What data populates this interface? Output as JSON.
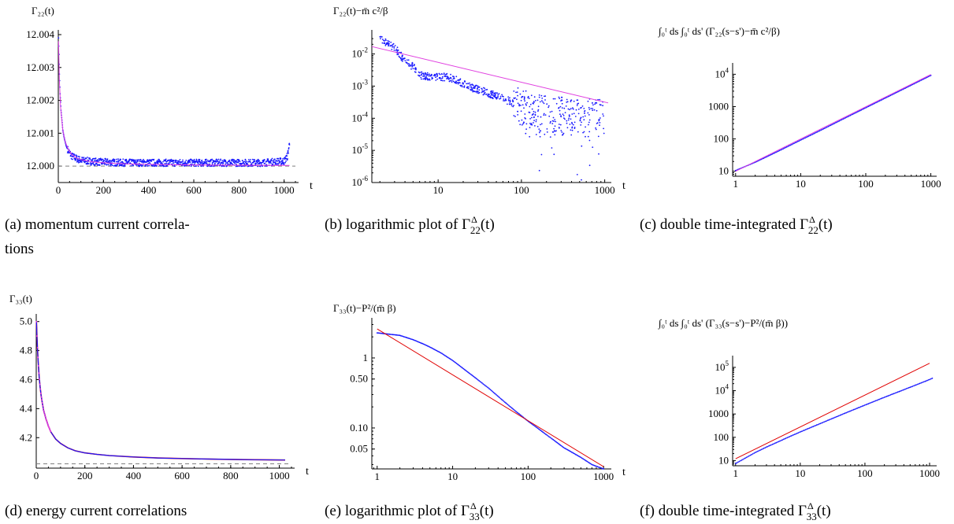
{
  "colors": {
    "scatter": "#1a1aff",
    "fit_magenta": "#e040e0",
    "fit_red": "#e00000",
    "dashed": "#7f7f7f"
  },
  "chart_data": [
    {
      "id": "a",
      "type": "scatter",
      "scale": "linear",
      "ylabel": "Γ₂₂(t)",
      "xlabel": "t",
      "xlim": [
        0,
        1050
      ],
      "ylim": [
        11.9995,
        12.004
      ],
      "xticks": [
        {
          "v": 0,
          "l": "0"
        },
        {
          "v": 200,
          "l": "200"
        },
        {
          "v": 400,
          "l": "400"
        },
        {
          "v": 600,
          "l": "600"
        },
        {
          "v": 800,
          "l": "800"
        },
        {
          "v": 1000,
          "l": "1000"
        }
      ],
      "yticks": [
        {
          "v": 12.0,
          "l": "12.000"
        },
        {
          "v": 12.001,
          "l": "12.001"
        },
        {
          "v": 12.002,
          "l": "12.002"
        },
        {
          "v": 12.003,
          "l": "12.003"
        },
        {
          "v": 12.004,
          "l": "12.004"
        }
      ],
      "baseline": 12.0,
      "series": [
        {
          "points": [
            [
              1,
              12.0039
            ],
            [
              3,
              12.0034
            ],
            [
              5,
              12.0028
            ],
            [
              8,
              12.0022
            ],
            [
              12,
              12.0017
            ],
            [
              16,
              12.0014
            ],
            [
              20,
              12.0011
            ],
            [
              25,
              12.0009
            ],
            [
              30,
              12.00075
            ],
            [
              36,
              12.0006
            ],
            [
              42,
              12.0005
            ],
            [
              50,
              12.0004
            ],
            [
              60,
              12.0003
            ],
            [
              75,
              12.00025
            ],
            [
              90,
              12.0002
            ],
            [
              110,
              12.00017
            ],
            [
              150,
              12.00014
            ],
            [
              200,
              12.00012
            ],
            [
              300,
              12.0001
            ],
            [
              400,
              12.0001
            ],
            [
              500,
              12.0001
            ],
            [
              600,
              12.0001
            ],
            [
              700,
              12.0001
            ],
            [
              800,
              12.0001
            ],
            [
              900,
              12.0001
            ],
            [
              1000,
              12.00015
            ],
            [
              1015,
              12.0003
            ],
            [
              1024,
              12.0007
            ]
          ],
          "noise": 0.00011
        },
        {
          "points": [
            [
              1,
              12.0038
            ],
            [
              5,
              12.0026
            ],
            [
              10,
              12.0018
            ],
            [
              20,
              12.0011
            ],
            [
              30,
              12.00075
            ],
            [
              45,
              12.0005
            ],
            [
              60,
              12.00035
            ],
            [
              80,
              12.00025
            ],
            [
              100,
              12.0002
            ],
            [
              150,
              12.00013
            ],
            [
              200,
              12.0001
            ],
            [
              300,
              12.00007
            ],
            [
              500,
              12.00004
            ],
            [
              700,
              12.00003
            ],
            [
              1024,
              12.00002
            ]
          ]
        }
      ]
    },
    {
      "id": "b",
      "type": "scatter",
      "scale": "loglog",
      "ylabel": "Γ₂₂(t)−m̄ c²/β",
      "xlabel": "t",
      "xlim": [
        1.6,
        1100
      ],
      "ylim": [
        1e-06,
        0.04
      ],
      "xticks": [
        {
          "v": 10,
          "l": "10"
        },
        {
          "v": 100,
          "l": "100"
        },
        {
          "v": 1000,
          "l": "1000"
        }
      ],
      "yticks": [
        {
          "v": 0.01,
          "b": "10",
          "e": "-2"
        },
        {
          "v": 0.001,
          "b": "10",
          "e": "-3"
        },
        {
          "v": 0.0001,
          "b": "10",
          "e": "-4"
        },
        {
          "v": 1e-05,
          "b": "10",
          "e": "-5"
        },
        {
          "v": 1e-06,
          "b": "10",
          "e": "-6"
        }
      ],
      "series": [
        {
          "points": [
            [
              2,
              0.03
            ],
            [
              3,
              0.016
            ],
            [
              4,
              0.006
            ],
            [
              5,
              0.004
            ],
            [
              6,
              0.0022
            ],
            [
              7,
              0.002
            ],
            [
              8,
              0.002
            ],
            [
              10,
              0.002
            ],
            [
              12,
              0.0019
            ],
            [
              15,
              0.0017
            ],
            [
              20,
              0.0012
            ],
            [
              25,
              0.0009
            ],
            [
              30,
              0.0008
            ],
            [
              40,
              0.0006
            ],
            [
              50,
              0.0005
            ],
            [
              60,
              0.0004
            ],
            [
              70,
              0.00035
            ],
            [
              80,
              0.0003
            ],
            [
              90,
              0.00025
            ],
            [
              100,
              0.0002
            ],
            [
              150,
              0.00015
            ],
            [
              200,
              0.00012
            ],
            [
              300,
              0.00012
            ],
            [
              400,
              0.00011
            ],
            [
              500,
              0.0001
            ],
            [
              600,
              0.0001
            ],
            [
              700,
              0.0001
            ],
            [
              800,
              0.0001
            ],
            [
              900,
              0.0001
            ],
            [
              1000,
              0.0001
            ]
          ]
        },
        {
          "fit": [
            [
              1.6,
              0.017
            ],
            [
              1100,
              0.0003
            ]
          ]
        }
      ]
    },
    {
      "id": "c",
      "type": "line",
      "scale": "loglog",
      "ylabel": "∫₀ᵗ ds ∫₀ᵗ ds' (Γ₂₂(s−s')−m̄ c²/β)",
      "xlabel": "",
      "xlim": [
        0.9,
        1100
      ],
      "ylim": [
        7,
        16000
      ],
      "xticks": [
        {
          "v": 1,
          "l": "1"
        },
        {
          "v": 10,
          "l": "10"
        },
        {
          "v": 100,
          "l": "100"
        },
        {
          "v": 1000,
          "l": "1000"
        }
      ],
      "yticks": [
        {
          "v": 10,
          "l": "10"
        },
        {
          "v": 100,
          "l": "100"
        },
        {
          "v": 1000,
          "l": "1000"
        },
        {
          "v": 10000,
          "b": "10",
          "e": "4"
        }
      ],
      "series": [
        {
          "points": [
            [
              1,
              10.5
            ],
            [
              2,
              19
            ],
            [
              3,
              28
            ],
            [
              5,
              46
            ],
            [
              10,
              92
            ],
            [
              20,
              182
            ],
            [
              50,
              460
            ],
            [
              100,
              920
            ],
            [
              200,
              1840
            ],
            [
              500,
              4600
            ],
            [
              1000,
              9200
            ]
          ]
        },
        {
          "fit": [
            [
              1,
              10
            ],
            [
              1000,
              9800
            ]
          ]
        }
      ]
    },
    {
      "id": "d",
      "type": "line",
      "scale": "linear",
      "ylabel": "Γ₃₃(t)",
      "xlabel": "t",
      "xlim": [
        0,
        1050
      ],
      "ylim": [
        3.99,
        5.02
      ],
      "xticks": [
        {
          "v": 0,
          "l": "0"
        },
        {
          "v": 200,
          "l": "200"
        },
        {
          "v": 400,
          "l": "400"
        },
        {
          "v": 600,
          "l": "600"
        },
        {
          "v": 800,
          "l": "800"
        },
        {
          "v": 1000,
          "l": "1000"
        }
      ],
      "yticks": [
        {
          "v": 4.2,
          "l": "4.2"
        },
        {
          "v": 4.4,
          "l": "4.4"
        },
        {
          "v": 4.6,
          "l": "4.6"
        },
        {
          "v": 4.8,
          "l": "4.8"
        },
        {
          "v": 5.0,
          "l": "5.0"
        }
      ],
      "baseline": 4.02,
      "series": [
        {
          "points": [
            [
              1,
              5.0
            ],
            [
              3,
              4.9
            ],
            [
              5,
              4.82
            ],
            [
              8,
              4.72
            ],
            [
              12,
              4.62
            ],
            [
              16,
              4.55
            ],
            [
              20,
              4.49
            ],
            [
              25,
              4.44
            ],
            [
              30,
              4.39
            ],
            [
              40,
              4.33
            ],
            [
              50,
              4.28
            ],
            [
              60,
              4.24
            ],
            [
              80,
              4.19
            ],
            [
              100,
              4.16
            ],
            [
              130,
              4.13
            ],
            [
              160,
              4.11
            ],
            [
              200,
              4.095
            ],
            [
              250,
              4.085
            ],
            [
              300,
              4.077
            ],
            [
              400,
              4.067
            ],
            [
              500,
              4.06
            ],
            [
              600,
              4.056
            ],
            [
              700,
              4.053
            ],
            [
              800,
              4.05
            ],
            [
              900,
              4.048
            ],
            [
              1024,
              4.046
            ]
          ]
        }
      ]
    },
    {
      "id": "e",
      "type": "scatter",
      "scale": "loglog",
      "ylabel": "Γ₃₃(t)−P²/(m̄ β)",
      "xlabel": "t",
      "xlim": [
        0.85,
        1150
      ],
      "ylim": [
        0.026,
        3.2
      ],
      "xticks": [
        {
          "v": 1,
          "l": "1"
        },
        {
          "v": 10,
          "l": "10"
        },
        {
          "v": 100,
          "l": "100"
        },
        {
          "v": 1000,
          "l": "1000"
        }
      ],
      "yticks": [
        {
          "v": 1,
          "l": "1"
        },
        {
          "v": 0.5,
          "l": "0.50"
        },
        {
          "v": 0.1,
          "l": "0.10"
        },
        {
          "v": 0.05,
          "l": "0.05"
        }
      ],
      "series": [
        {
          "points": [
            [
              1,
              2.28
            ],
            [
              2,
              2.1
            ],
            [
              3,
              1.82
            ],
            [
              4,
              1.6
            ],
            [
              5,
              1.43
            ],
            [
              7,
              1.18
            ],
            [
              10,
              0.92
            ],
            [
              15,
              0.66
            ],
            [
              20,
              0.52
            ],
            [
              30,
              0.37
            ],
            [
              50,
              0.23
            ],
            [
              70,
              0.17
            ],
            [
              100,
              0.125
            ],
            [
              200,
              0.072
            ],
            [
              300,
              0.052
            ],
            [
              500,
              0.038
            ],
            [
              700,
              0.03
            ],
            [
              1000,
              0.026
            ]
          ]
        },
        {
          "fit": [
            [
              1,
              2.6
            ],
            [
              1000,
              0.028
            ]
          ]
        }
      ]
    },
    {
      "id": "f",
      "type": "line",
      "scale": "loglog",
      "ylabel": "∫₀ᵗ ds ∫₀ᵗ ds' (Γ₃₃(s−s')−P²/(m̄ β))",
      "xlabel": "",
      "xlim": [
        0.9,
        1150
      ],
      "ylim": [
        6,
        200000
      ],
      "xticks": [
        {
          "v": 1,
          "l": "1"
        },
        {
          "v": 10,
          "l": "10"
        },
        {
          "v": 100,
          "l": "100"
        },
        {
          "v": 1000,
          "l": "1000"
        }
      ],
      "yticks": [
        {
          "v": 10,
          "l": "10"
        },
        {
          "v": 100,
          "l": "100"
        },
        {
          "v": 1000,
          "l": "1000"
        },
        {
          "v": 10000,
          "b": "10",
          "e": "4"
        },
        {
          "v": 100000,
          "b": "10",
          "e": "5"
        }
      ],
      "series": [
        {
          "points": [
            [
              1,
              7.5
            ],
            [
              2,
              22
            ],
            [
              3,
              38
            ],
            [
              5,
              72
            ],
            [
              7,
              110
            ],
            [
              10,
              170
            ],
            [
              20,
              380
            ],
            [
              50,
              1100
            ],
            [
              100,
              2400
            ],
            [
              200,
              5200
            ],
            [
              500,
              14000
            ],
            [
              1000,
              30000
            ],
            [
              1100,
              34000
            ]
          ]
        },
        {
          "fit": [
            [
              1,
              12
            ],
            [
              1000,
              150000
            ]
          ]
        }
      ]
    }
  ],
  "captions": {
    "a_line1": "(a)  momentum  current  correla-",
    "a_line2": "tions",
    "b_text": "(b) logarithmic plot of Γ",
    "b_sup": "Δ",
    "b_sub": "22",
    "b_arg": "(t)",
    "c_text": "(c) double time-integrated Γ",
    "c_sup": "Δ",
    "c_sub": "22",
    "c_arg": "(t)",
    "d_text": "(d) energy current correlations",
    "e_text": "(e) logarithmic plot of Γ",
    "e_sup": "Δ",
    "e_sub": "33",
    "e_arg": "(t)",
    "f_text": "(f) double time-integrated Γ",
    "f_sup": "Δ",
    "f_sub": "33",
    "f_arg": "(t)"
  }
}
